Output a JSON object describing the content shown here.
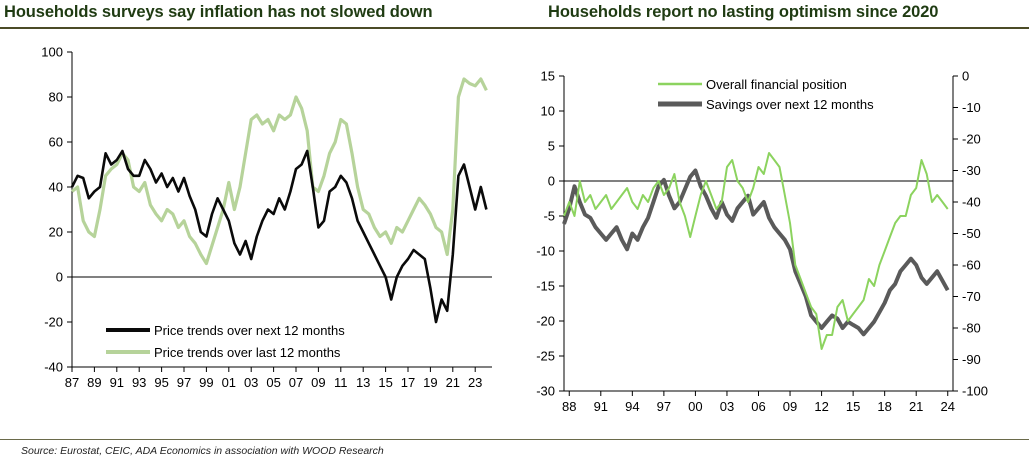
{
  "titles": {
    "left": "Households surveys say inflation has not slowed down",
    "right": "Households report no lasting optimism since 2020"
  },
  "source": "Source: Eurostat, CEIC, ADA Economics in association with WOOD Research",
  "colors": {
    "black_series": "#0a0a0a",
    "lightgreen_series": "#b6d39a",
    "green_series": "#8cd35f",
    "gray_series": "#5a5a5a",
    "title": "#1f3b12"
  },
  "chart_data": [
    {
      "type": "line",
      "title": "Households surveys say inflation has not slowed down",
      "xlabel": "",
      "ylabel": "",
      "xlim": [
        1987,
        2024.5
      ],
      "ylim": [
        -40,
        100
      ],
      "yticks": [
        "-40",
        "-20",
        "0",
        "20",
        "40",
        "60",
        "80",
        "100"
      ],
      "xticks": [
        "87",
        "89",
        "91",
        "93",
        "95",
        "97",
        "99",
        "01",
        "03",
        "05",
        "07",
        "09",
        "11",
        "13",
        "15",
        "17",
        "19",
        "21",
        "23"
      ],
      "legend": [
        "Price trends over next 12 months",
        "Price trends over last 12 months"
      ],
      "series": [
        {
          "name": "Price trends over next 12 months",
          "x": [
            1987,
            1987.5,
            1988,
            1988.5,
            1989,
            1989.5,
            1990,
            1990.5,
            1991,
            1991.5,
            1992,
            1992.5,
            1993,
            1993.5,
            1994,
            1994.5,
            1995,
            1995.5,
            1996,
            1996.5,
            1997,
            1997.5,
            1998,
            1998.5,
            1999,
            1999.5,
            2000,
            2000.5,
            2001,
            2001.5,
            2002,
            2002.5,
            2003,
            2003.5,
            2004,
            2004.5,
            2005,
            2005.5,
            2006,
            2006.5,
            2007,
            2007.5,
            2008,
            2008.5,
            2009,
            2009.5,
            2010,
            2010.5,
            2011,
            2011.5,
            2012,
            2012.5,
            2013,
            2013.5,
            2014,
            2014.5,
            2015,
            2015.5,
            2016,
            2016.5,
            2017,
            2017.5,
            2018,
            2018.5,
            2019,
            2019.5,
            2020,
            2020.5,
            2021,
            2021.5,
            2022,
            2022.5,
            2023,
            2023.5,
            2024
          ],
          "values": [
            40,
            45,
            44,
            35,
            38,
            40,
            55,
            50,
            52,
            56,
            48,
            45,
            45,
            52,
            48,
            42,
            46,
            40,
            44,
            38,
            44,
            36,
            30,
            20,
            18,
            28,
            35,
            30,
            25,
            15,
            10,
            16,
            8,
            18,
            25,
            30,
            28,
            35,
            30,
            38,
            48,
            50,
            56,
            40,
            22,
            25,
            38,
            40,
            45,
            42,
            35,
            25,
            20,
            15,
            10,
            5,
            0,
            -10,
            0,
            5,
            8,
            12,
            10,
            8,
            -5,
            -20,
            -10,
            -15,
            10,
            45,
            50,
            40,
            30,
            40,
            30
          ]
        },
        {
          "name": "Price trends over last 12 months",
          "x": [
            1987,
            1987.5,
            1988,
            1988.5,
            1989,
            1989.5,
            1990,
            1990.5,
            1991,
            1991.5,
            1992,
            1992.5,
            1993,
            1993.5,
            1994,
            1994.5,
            1995,
            1995.5,
            1996,
            1996.5,
            1997,
            1997.5,
            1998,
            1998.5,
            1999,
            1999.5,
            2000,
            2000.5,
            2001,
            2001.5,
            2002,
            2002.5,
            2003,
            2003.5,
            2004,
            2004.5,
            2005,
            2005.5,
            2006,
            2006.5,
            2007,
            2007.5,
            2008,
            2008.5,
            2009,
            2009.5,
            2010,
            2010.5,
            2011,
            2011.5,
            2012,
            2012.5,
            2013,
            2013.5,
            2014,
            2014.5,
            2015,
            2015.5,
            2016,
            2016.5,
            2017,
            2017.5,
            2018,
            2018.5,
            2019,
            2019.5,
            2020,
            2020.5,
            2021,
            2021.5,
            2022,
            2022.5,
            2023,
            2023.5,
            2024
          ],
          "values": [
            38,
            40,
            25,
            20,
            18,
            30,
            45,
            48,
            50,
            55,
            52,
            40,
            38,
            42,
            32,
            28,
            25,
            30,
            28,
            22,
            25,
            18,
            15,
            10,
            6,
            14,
            22,
            30,
            42,
            30,
            40,
            55,
            70,
            72,
            68,
            70,
            65,
            72,
            70,
            72,
            80,
            75,
            65,
            40,
            38,
            45,
            55,
            60,
            70,
            68,
            55,
            40,
            30,
            28,
            22,
            18,
            20,
            15,
            22,
            20,
            25,
            30,
            35,
            32,
            28,
            22,
            20,
            10,
            30,
            80,
            88,
            86,
            85,
            88,
            83
          ]
        }
      ]
    },
    {
      "type": "line",
      "title": "Households report no lasting optimism since 2020",
      "xlabel": "",
      "ylabel": "",
      "xlim": [
        1987.5,
        2024.5
      ],
      "ylim_left": [
        -30,
        15
      ],
      "ylim_right": [
        -100,
        0
      ],
      "yticks_left": [
        "-30",
        "-25",
        "-20",
        "-15",
        "-10",
        "-5",
        "0",
        "5",
        "10",
        "15"
      ],
      "yticks_right": [
        "-100",
        "-90",
        "-80",
        "-70",
        "-60",
        "-50",
        "-40",
        "-30",
        "-20",
        "-10",
        "0"
      ],
      "xticks": [
        "88",
        "91",
        "94",
        "97",
        "00",
        "03",
        "06",
        "09",
        "12",
        "15",
        "18",
        "21",
        "24"
      ],
      "legend": [
        "Overall financial position",
        "Savings over next 12 months"
      ],
      "series": [
        {
          "name": "Overall financial position",
          "axis": "left",
          "x": [
            1987.5,
            1988,
            1988.5,
            1989,
            1989.5,
            1990,
            1990.5,
            1991,
            1991.5,
            1992,
            1992.5,
            1993,
            1993.5,
            1994,
            1994.5,
            1995,
            1995.5,
            1996,
            1996.5,
            1997,
            1997.5,
            1998,
            1998.5,
            1999,
            1999.5,
            2000,
            2000.5,
            2001,
            2001.5,
            2002,
            2002.5,
            2003,
            2003.5,
            2004,
            2004.5,
            2005,
            2005.5,
            2006,
            2006.5,
            2007,
            2007.5,
            2008,
            2008.5,
            2009,
            2009.5,
            2010,
            2010.5,
            2011,
            2011.5,
            2012,
            2012.5,
            2013,
            2013.5,
            2014,
            2014.5,
            2015,
            2015.5,
            2016,
            2016.5,
            2017,
            2017.5,
            2018,
            2018.5,
            2019,
            2019.5,
            2020,
            2020.5,
            2021,
            2021.5,
            2022,
            2022.5,
            2023,
            2023.5,
            2024
          ],
          "values": [
            -5,
            -3,
            -5,
            0,
            -3,
            -2,
            -4,
            -3,
            -2,
            -4,
            -3,
            -2,
            -1,
            -3,
            -4,
            -2,
            -3,
            -1,
            0,
            -2,
            -1,
            1,
            -3,
            -5,
            -8,
            -5,
            -2,
            0,
            -2,
            -4,
            -3,
            2,
            3,
            0,
            -1,
            -3,
            -1,
            2,
            1,
            4,
            3,
            2,
            -2,
            -6,
            -12,
            -14,
            -16,
            -18,
            -19,
            -24,
            -22,
            -22,
            -18,
            -17,
            -20,
            -19,
            -18,
            -17,
            -14,
            -15,
            -12,
            -10,
            -8,
            -6,
            -5,
            -5,
            -2,
            -1,
            3,
            1,
            -3,
            -2,
            -3,
            -4
          ]
        },
        {
          "name": "Savings over next 12 months",
          "axis": "right",
          "x": [
            1987.5,
            1988,
            1988.5,
            1989,
            1989.5,
            1990,
            1990.5,
            1991,
            1991.5,
            1992,
            1992.5,
            1993,
            1993.5,
            1994,
            1994.5,
            1995,
            1995.5,
            1996,
            1996.5,
            1997,
            1997.5,
            1998,
            1998.5,
            1999,
            1999.5,
            2000,
            2000.5,
            2001,
            2001.5,
            2002,
            2002.5,
            2003,
            2003.5,
            2004,
            2004.5,
            2005,
            2005.5,
            2006,
            2006.5,
            2007,
            2007.5,
            2008,
            2008.5,
            2009,
            2009.5,
            2010,
            2010.5,
            2011,
            2011.5,
            2012,
            2012.5,
            2013,
            2013.5,
            2014,
            2014.5,
            2015,
            2015.5,
            2016,
            2016.5,
            2017,
            2017.5,
            2018,
            2018.5,
            2019,
            2019.5,
            2020,
            2020.5,
            2021,
            2021.5,
            2022,
            2022.5,
            2023,
            2023.5,
            2024
          ],
          "values": [
            -47,
            -42,
            -35,
            -40,
            -44,
            -45,
            -48,
            -50,
            -52,
            -50,
            -48,
            -52,
            -55,
            -50,
            -52,
            -48,
            -45,
            -40,
            -35,
            -33,
            -38,
            -42,
            -40,
            -36,
            -32,
            -30,
            -35,
            -38,
            -42,
            -45,
            -40,
            -44,
            -46,
            -42,
            -40,
            -38,
            -44,
            -42,
            -40,
            -45,
            -48,
            -50,
            -52,
            -55,
            -62,
            -66,
            -70,
            -76,
            -78,
            -80,
            -78,
            -76,
            -77,
            -80,
            -78,
            -79,
            -80,
            -82,
            -80,
            -78,
            -75,
            -72,
            -68,
            -66,
            -62,
            -60,
            -58,
            -60,
            -64,
            -66,
            -64,
            -62,
            -65,
            -68
          ]
        }
      ]
    }
  ]
}
